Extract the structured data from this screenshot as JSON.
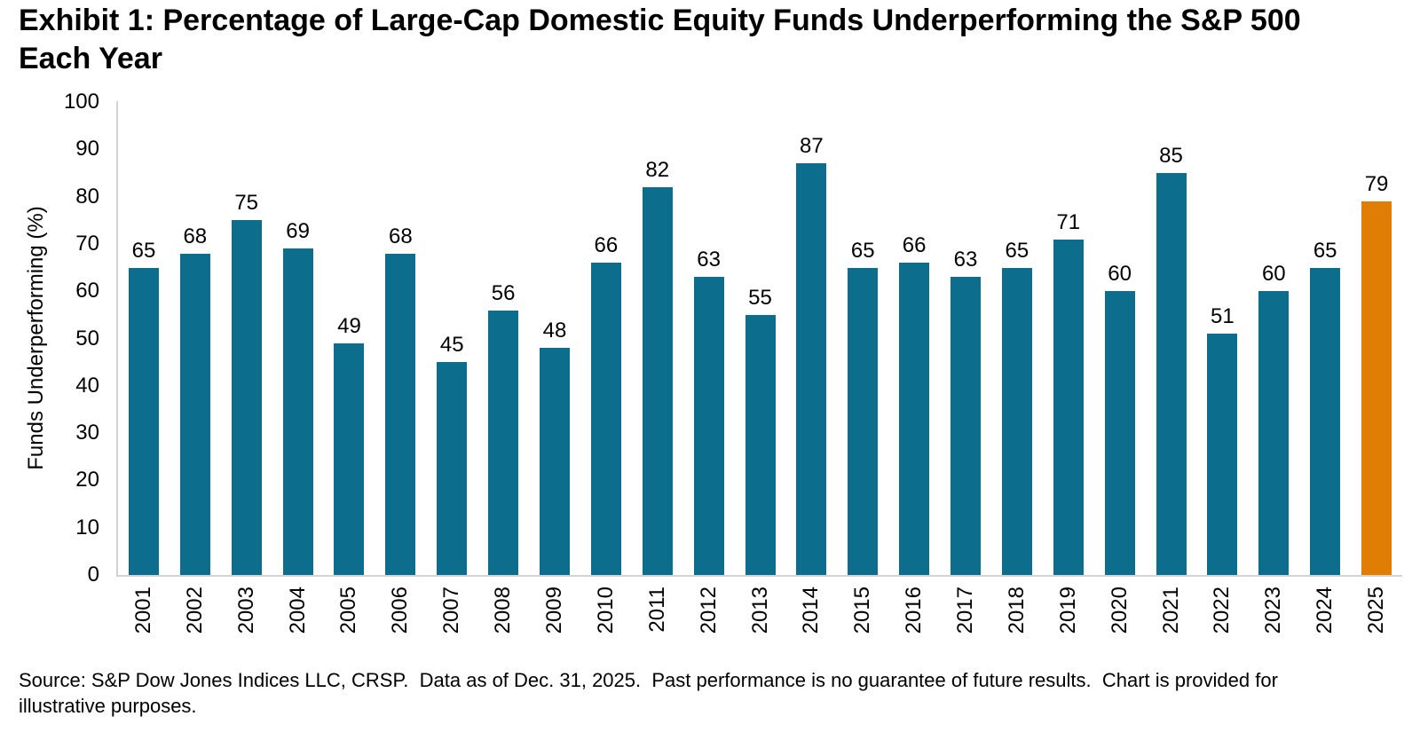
{
  "chart_data": {
    "type": "bar",
    "title": "Exhibit 1: Percentage of Large-Cap Domestic Equity Funds Underperforming the S&P 500 Each Year",
    "ylabel": "Funds Underperforming (%)",
    "xlabel": "",
    "ylim": [
      0,
      100
    ],
    "yticks": [
      0,
      10,
      20,
      30,
      40,
      50,
      60,
      70,
      80,
      90,
      100
    ],
    "grid": false,
    "legend": "none",
    "data_labels": true,
    "categories": [
      "2001",
      "2002",
      "2003",
      "2004",
      "2005",
      "2006",
      "2007",
      "2008",
      "2009",
      "2010",
      "2011",
      "2012",
      "2013",
      "2014",
      "2015",
      "2016",
      "2017",
      "2018",
      "2019",
      "2020",
      "2021",
      "2022",
      "2023",
      "2024",
      "2025"
    ],
    "values": [
      65,
      68,
      75,
      69,
      49,
      68,
      45,
      56,
      48,
      66,
      82,
      63,
      55,
      87,
      65,
      66,
      63,
      65,
      71,
      60,
      85,
      51,
      60,
      65,
      79
    ],
    "bar_color": "#0C6E8C",
    "highlight_color": "#E07D04",
    "highlight_category": "2025",
    "axis_line_color": "#D3D3D3"
  },
  "source_note": "Source: S&P Dow Jones Indices LLC, CRSP.  Data as of Dec. 31, 2025.  Past performance is no guarantee of future results.  Chart is provided for illustrative purposes."
}
